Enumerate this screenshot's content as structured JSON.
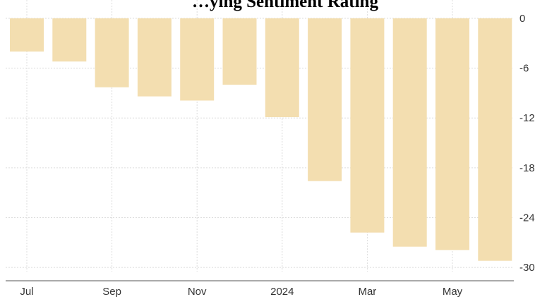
{
  "chart_data": {
    "type": "bar",
    "title": "…ying Sentiment Rating",
    "xlabel": "",
    "ylabel": "",
    "categories": [
      "2023-07",
      "2023-08",
      "2023-09",
      "2023-10",
      "2023-11",
      "2023-12",
      "2024-01",
      "2024-02",
      "2024-03",
      "2024-04",
      "2024-05",
      "2024-06"
    ],
    "values": [
      -4,
      -5.2,
      -8.3,
      -9.4,
      -9.9,
      -8,
      -11.9,
      -19.6,
      -25.8,
      -27.5,
      -27.9,
      -29.2
    ],
    "ylim": [
      -30.5,
      0
    ],
    "yticks": [
      0,
      -6,
      -12,
      -18,
      -24,
      -30
    ],
    "ytick_labels": [
      "0",
      "-6",
      "-12",
      "-18",
      "-24",
      "-30"
    ],
    "xtick_labels": [
      {
        "label": "Jul",
        "category": "2023-07"
      },
      {
        "label": "Sep",
        "category": "2023-09"
      },
      {
        "label": "Nov",
        "category": "2023-11"
      },
      {
        "label": "2024",
        "category": "2024-01"
      },
      {
        "label": "Mar",
        "category": "2024-03"
      },
      {
        "label": "May",
        "category": "2024-05"
      }
    ],
    "bar_color": "#f3deb0",
    "grid": true,
    "y_axis_position": "right"
  }
}
